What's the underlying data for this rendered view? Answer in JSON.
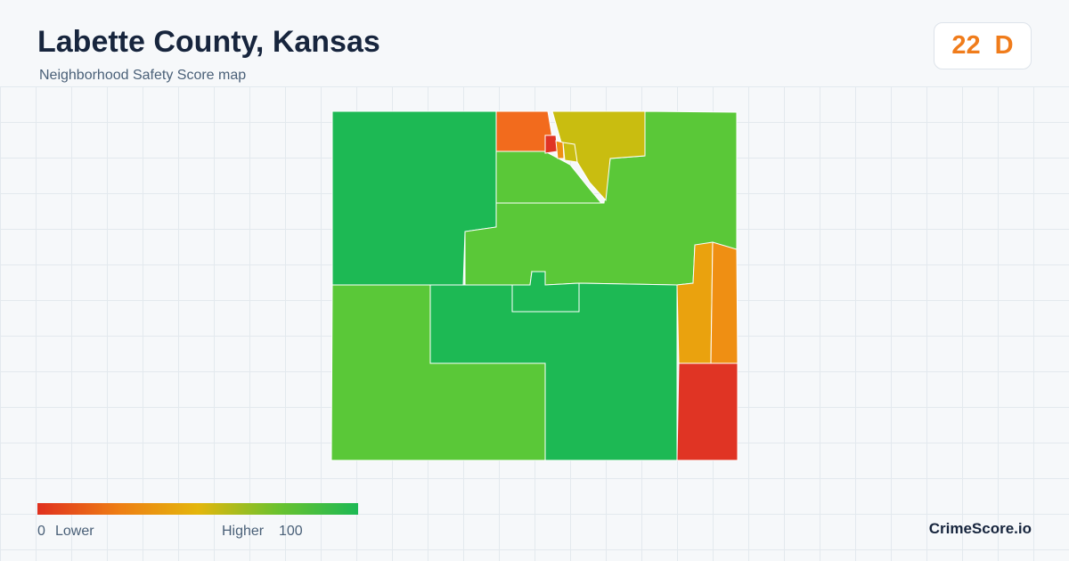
{
  "header": {
    "title": "Labette County, Kansas",
    "subtitle": "Neighborhood Safety Score map"
  },
  "score": {
    "value": 22,
    "grade": "D"
  },
  "legend": {
    "min": 0,
    "min_label": "Lower",
    "max_label": "Higher",
    "max": 100
  },
  "brand": "CrimeScore.io"
}
